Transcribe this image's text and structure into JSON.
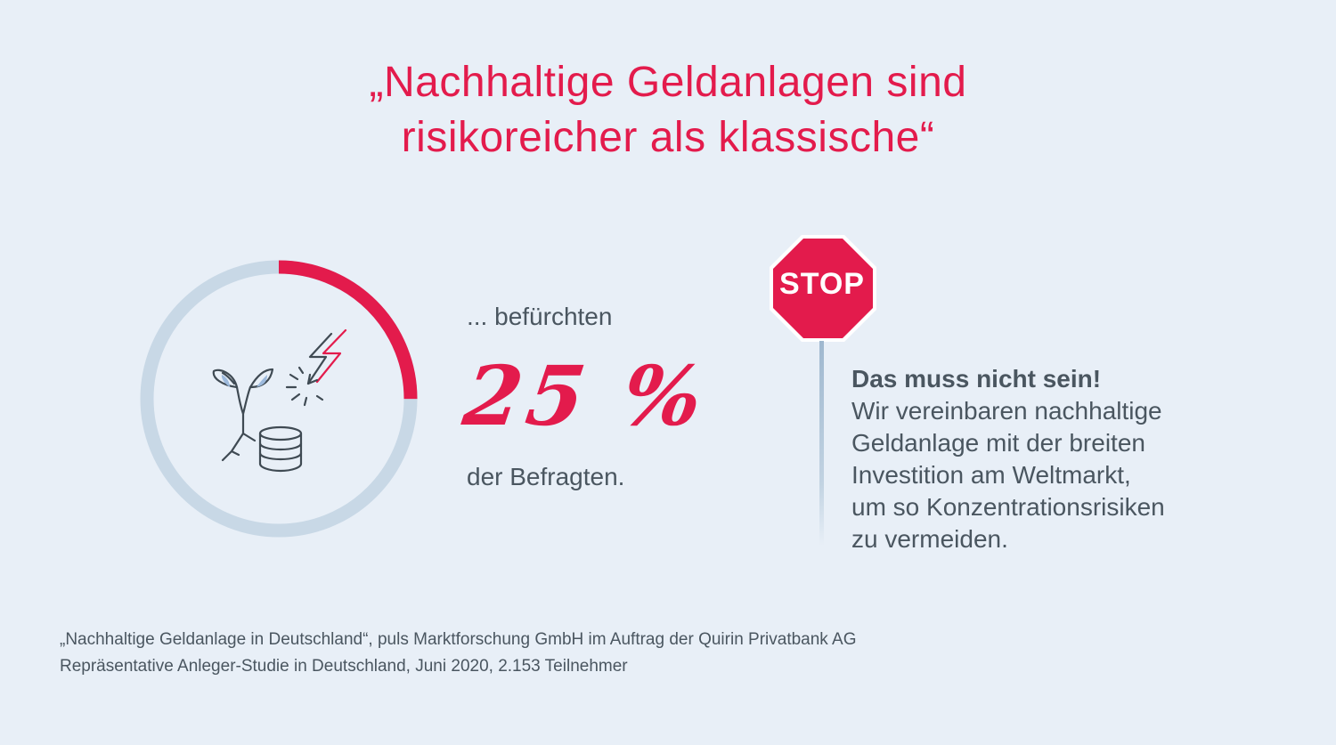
{
  "headline": {
    "line1": "„Nachhaltige Geldanlagen sind",
    "line2": "risikoreicher als klassische“"
  },
  "stat": {
    "lead": "... befürchten",
    "value": "25 %",
    "percent": 25,
    "tail": "der Befragten."
  },
  "stop_sign": {
    "label": "STOP"
  },
  "note": {
    "heading": "Das muss nicht sein!",
    "lines": [
      "Wir vereinbaren nachhaltige",
      "Geldanlage mit der breiten",
      "Investition am Weltmarkt,",
      "um so Konzentrationsrisiken",
      "zu vermeiden."
    ]
  },
  "source": {
    "line1": "„Nachhaltige Geldanlage in Deutschland“, puls Marktforschung GmbH im Auftrag der Quirin Privatbank AG",
    "line2": "Repräsentative Anleger-Studie in Deutschland, Juni 2020, 2.153 Teilnehmer"
  },
  "icons": {
    "ring_center": "plant-coins-lightning-icon",
    "sign": "stop-sign-icon"
  },
  "colors": {
    "accent": "#e31b4c",
    "ring_track": "#c8d8e6",
    "text": "#4a5660",
    "background": "#e8eff7",
    "leaf_fill": "#9cb9dc"
  }
}
